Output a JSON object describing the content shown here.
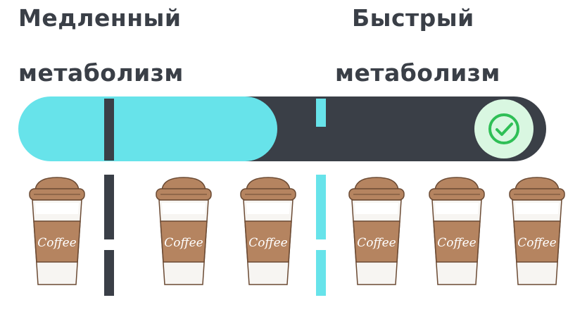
{
  "slow": {
    "line1": "Медленный",
    "line2": "метаболизм"
  },
  "fast": {
    "line1": "Быстрый",
    "line2": "метаболизм"
  },
  "progress": {
    "slow_fill_fraction": 0.49,
    "status_icon": "check-icon"
  },
  "cup_label": "Coffee",
  "colors": {
    "dark": "#3a3f47",
    "accent": "#67e3ea",
    "cup_brown": "#b58460",
    "check_green": "#2fbf56",
    "check_bg": "#d9f7e1"
  },
  "cups": {
    "slow_count": 3,
    "fast_count": 3
  }
}
